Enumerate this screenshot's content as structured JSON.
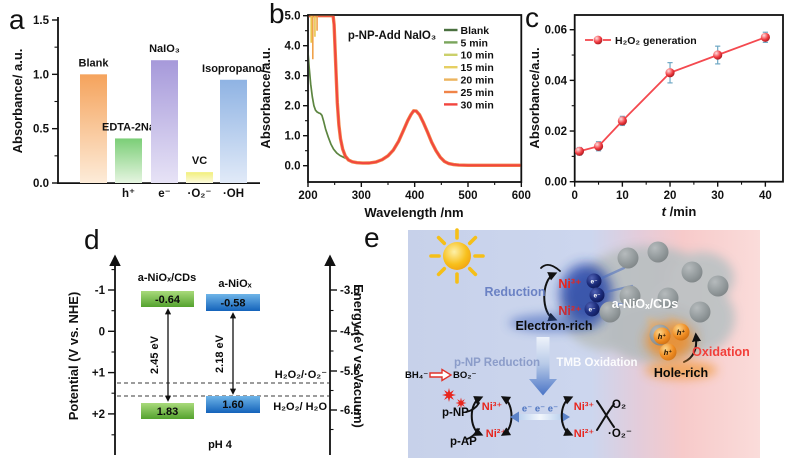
{
  "panel_letters": {
    "a": "a",
    "b": "b",
    "c": "c",
    "d": "d",
    "e": "e"
  },
  "chart_data": [
    {
      "id": "a",
      "type": "bar",
      "ylabel": "Absorbance/ a.u.",
      "ylim": [
        0,
        1.5
      ],
      "yticks": [
        "0.0",
        "0.5",
        "1.0",
        "1.5"
      ],
      "categories": [
        "h⁺",
        "e⁻",
        "·O₂⁻",
        "·OH"
      ],
      "bars": [
        {
          "label": "Blank",
          "value": 1.0,
          "x_tick": null,
          "color_top": "#f5a35c",
          "color_bottom": "#fdecd9"
        },
        {
          "label": "EDTA-2Na",
          "value": 0.41,
          "x_tick": "h⁺",
          "color_top": "#7bce77",
          "color_bottom": "#e6f5e1"
        },
        {
          "label": "NaIO₃",
          "value": 1.13,
          "x_tick": "e⁻",
          "color_top": "#a699da",
          "color_bottom": "#e7e3f6"
        },
        {
          "label": "VC",
          "value": 0.1,
          "x_tick": "·O₂⁻",
          "color_top": "#f2ef7b",
          "color_bottom": "#fcfade"
        },
        {
          "label": "Isopropanol",
          "value": 0.95,
          "x_tick": "·OH",
          "color_top": "#8fb3e3",
          "color_bottom": "#e1eaf8"
        }
      ]
    },
    {
      "id": "b",
      "type": "line",
      "title": "p-NP-Add NaIO₃",
      "xlabel": "Wavelength /nm",
      "ylabel": "Absorbance/a.u.",
      "xlim": [
        200,
        600
      ],
      "ylim": [
        -0.55,
        5.0
      ],
      "xticks": [
        200,
        300,
        400,
        500,
        600
      ],
      "yticks": [
        "0.0",
        "1.0",
        "2.0",
        "3.0",
        "4.0",
        "5.0"
      ],
      "legend": [
        {
          "label": "Blank",
          "color": "#4a7040"
        },
        {
          "label": "5 min",
          "color": "#7aa55c"
        },
        {
          "label": "10 min",
          "color": "#cbd06b"
        },
        {
          "label": "15 min",
          "color": "#e6cf63"
        },
        {
          "label": "20 min",
          "color": "#ecb45e"
        },
        {
          "label": "25 min",
          "color": "#f08448"
        },
        {
          "label": "30 min",
          "color": "#f2453e"
        }
      ],
      "series": [
        {
          "name": "Blank",
          "color": "#5c8540",
          "stroke_width": 1.7,
          "points": [
            [
              200,
              3.78
            ],
            [
              202,
              3.3
            ],
            [
              205,
              2.72
            ],
            [
              208,
              2.3
            ],
            [
              211,
              2.0
            ],
            [
              214,
              1.85
            ],
            [
              217,
              1.79
            ],
            [
              220,
              1.76
            ],
            [
              223,
              1.74
            ],
            [
              226,
              1.68
            ],
            [
              229,
              1.5
            ],
            [
              233,
              1.22
            ],
            [
              238,
              0.95
            ],
            [
              243,
              0.72
            ],
            [
              248,
              0.55
            ],
            [
              254,
              0.42
            ],
            [
              260,
              0.34
            ],
            [
              267,
              0.28
            ],
            [
              274,
              0.22
            ],
            [
              281,
              0.16
            ],
            [
              289,
              0.12
            ],
            [
              297,
              0.1
            ],
            [
              305,
              0.095
            ]
          ]
        },
        {
          "name": "5 min",
          "color": "#7aa55c",
          "points_same_as": "30 min",
          "stroke_width": 1.5
        },
        {
          "name": "10 min",
          "color": "#cbd06b",
          "points_same_as": "30 min",
          "stroke_width": 1.5
        },
        {
          "name": "15 min",
          "color": "#e6cf63",
          "points_same_as": "30 min",
          "stroke_width": 1.5
        },
        {
          "name": "20 min",
          "color": "#ecb45e",
          "points_same_as": "30 min",
          "stroke_width": 1.5
        },
        {
          "name": "25 min",
          "color": "#f08448",
          "points_same_as": "30 min",
          "stroke_width": 3.4
        },
        {
          "name": "30 min",
          "color": "#f2453e",
          "stroke_width": 1.9,
          "points": [
            [
              200,
              5.0
            ],
            [
              247,
              5.0
            ],
            [
              249,
              4.7
            ],
            [
              251,
              3.8
            ],
            [
              253,
              2.9
            ],
            [
              255,
              2.1
            ],
            [
              258,
              1.35
            ],
            [
              261,
              0.9
            ],
            [
              265,
              0.55
            ],
            [
              270,
              0.32
            ],
            [
              276,
              0.19
            ],
            [
              283,
              0.13
            ],
            [
              292,
              0.1
            ],
            [
              303,
              0.085
            ],
            [
              315,
              0.09
            ],
            [
              327,
              0.12
            ],
            [
              339,
              0.2
            ],
            [
              350,
              0.33
            ],
            [
              360,
              0.52
            ],
            [
              370,
              0.82
            ],
            [
              379,
              1.18
            ],
            [
              387,
              1.5
            ],
            [
              393,
              1.7
            ],
            [
              398,
              1.83
            ],
            [
              403,
              1.82
            ],
            [
              409,
              1.7
            ],
            [
              416,
              1.45
            ],
            [
              424,
              1.12
            ],
            [
              432,
              0.78
            ],
            [
              440,
              0.5
            ],
            [
              448,
              0.28
            ],
            [
              456,
              0.14
            ],
            [
              464,
              0.07
            ],
            [
              473,
              0.035
            ],
            [
              483,
              0.02
            ],
            [
              500,
              0.015
            ],
            [
              530,
              0.015
            ],
            [
              565,
              0.015
            ],
            [
              600,
              0.015
            ]
          ]
        }
      ],
      "spikes": [
        {
          "x": 206,
          "to": 4.1,
          "color": "#e8c44c"
        },
        {
          "x": 209,
          "to": 3.55,
          "color": "#f0a24a"
        },
        {
          "x": 213,
          "to": 4.3,
          "color": "#e8c44c"
        },
        {
          "x": 217,
          "to": 4.5,
          "color": "#f0a24a"
        }
      ]
    },
    {
      "id": "c",
      "type": "line",
      "legend_label": "H₂O₂ generation",
      "xlabel_italic": "t",
      "xlabel_rest": " /min",
      "ylabel": "Absorbance/a.u.",
      "xlim": [
        -1.5,
        43.7
      ],
      "ylim": [
        0,
        0.0658
      ],
      "xticks": [
        0,
        10,
        20,
        30,
        40
      ],
      "yticks": [
        "0.00",
        "0.02",
        "0.04",
        "0.06"
      ],
      "x": [
        1,
        5,
        10,
        20,
        30,
        40
      ],
      "y": [
        0.012,
        0.014,
        0.024,
        0.043,
        0.05,
        0.057
      ],
      "yerr": [
        0.0015,
        0.0018,
        0.0018,
        0.004,
        0.0035,
        0.002
      ],
      "line_color": "#f4494f",
      "marker_colors": [
        "#ffdfdf",
        "#f23c42",
        "#971116"
      ],
      "errorbar_color": "#6fa8c4"
    }
  ],
  "panel_d": {
    "ylabel_left": "Potential (V vs. NHE)",
    "ylabel_right": "Energy (eV vs.Vacuum)",
    "left_ticks": [
      "-1",
      "0",
      "+1",
      "+2"
    ],
    "right_ticks": [
      "-3.5",
      "-4.5",
      "-5.5",
      "-6.5"
    ],
    "materials": [
      {
        "name": "a-NiOₓ/CDs",
        "cb": "-0.64",
        "vb": "1.83",
        "gap": "2.45 eV"
      },
      {
        "name": "a-NiOₓ",
        "cb": "-0.58",
        "vb": "1.60",
        "gap": "2.18 eV"
      }
    ],
    "redox_upper": "H₂O₂/·O₂⁻",
    "redox_lower": "H₂O₂/ H₂O",
    "note": "pH 4",
    "colors": {
      "green_top": "#a9da7b",
      "green_bottom": "#54a22e",
      "blue_top": "#6fb5e8",
      "blue_bottom": "#1463ba"
    }
  },
  "panel_e": {
    "reduction": "Reduction",
    "oxidation": "Oxidation",
    "electron_rich": "Electron-rich",
    "hole_rich": "Hole-rich",
    "material": "a-NiOₓ/CDs",
    "pnp_reduction": "p-NP Reduction",
    "tmb_oxidation": "TMB Oxidation",
    "ni3": "Ni³⁺",
    "ni2": "Ni²⁺",
    "e_minus": "e⁻",
    "h_plus": "h⁺",
    "electron_chain": "e⁻ e⁻ e⁻",
    "bh4": "BH₄⁻",
    "bo2": "BO₂⁻",
    "pnp": "p-NP",
    "pap": "p-AP",
    "o2": "O₂",
    "o2_radical": "·O₂⁻",
    "colors": {
      "reduction": "#6b82c4",
      "pnp_reduction": "#8b9cc9",
      "oxidation": "#f23f3a",
      "ni": "#e8251d",
      "electron_chain": "#4d74c0",
      "background_left": "#c7d1ea",
      "background_right": "#f7caca"
    }
  }
}
